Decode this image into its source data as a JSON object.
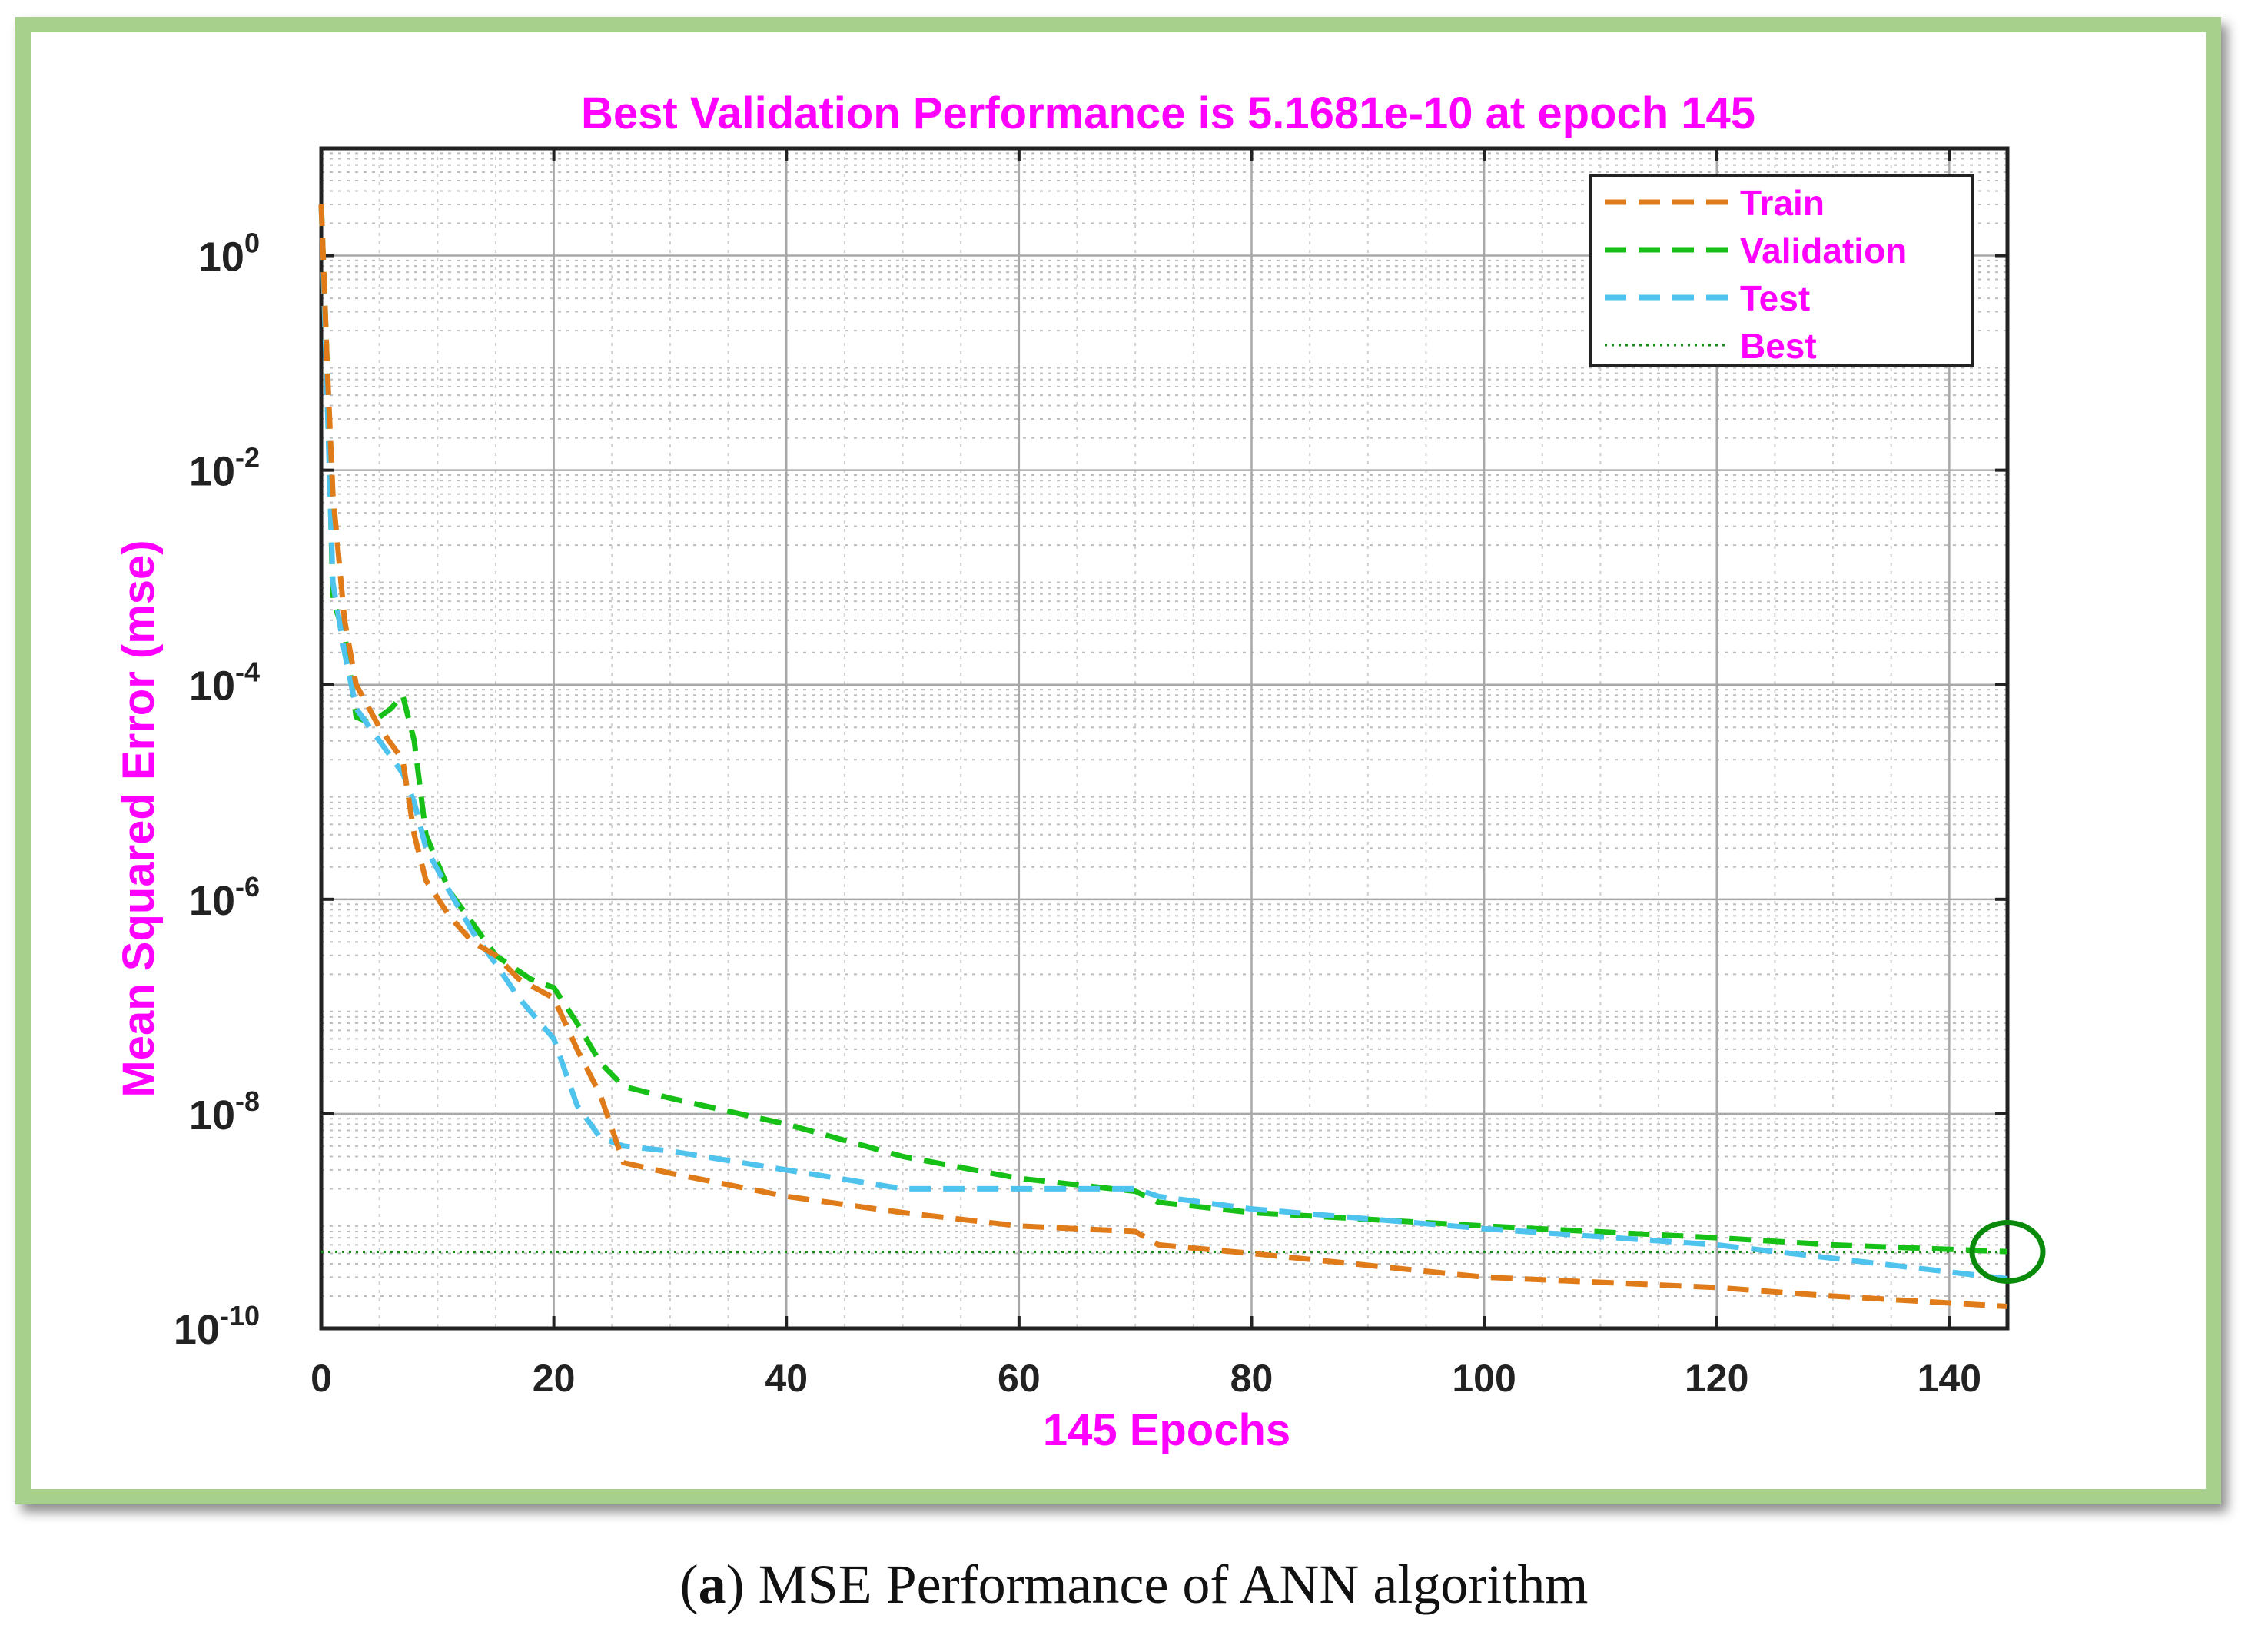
{
  "colors": {
    "frame": "#a8d08d",
    "title": "#ff00ff",
    "train": "#e07b1a",
    "validation": "#17c017",
    "test": "#4ec3ee",
    "best": "#1a8a1a",
    "circle": "#0a8a0a"
  },
  "caption": {
    "letter": "a",
    "text": "MSE Performance of ANN algorithm"
  },
  "chart_data": {
    "type": "line",
    "title": "Best Validation Performance is 5.1681e-10 at epoch 145",
    "xlabel": "145 Epochs",
    "ylabel": "Mean Squared Error  (mse)",
    "yscale": "log",
    "xlim": [
      0,
      145
    ],
    "ylim": [
      1e-10,
      10
    ],
    "xticks": [
      0,
      20,
      40,
      60,
      80,
      100,
      120,
      140
    ],
    "yticks": [
      {
        "value": 1,
        "base": "10",
        "exp": "0"
      },
      {
        "value": 0.01,
        "base": "10",
        "exp": "-2"
      },
      {
        "value": 0.0001,
        "base": "10",
        "exp": "-4"
      },
      {
        "value": 1e-06,
        "base": "10",
        "exp": "-6"
      },
      {
        "value": 1e-08,
        "base": "10",
        "exp": "-8"
      },
      {
        "value": 1e-10,
        "base": "10",
        "exp": "-10"
      }
    ],
    "grid": true,
    "legend_position": "top-right",
    "series": [
      {
        "name": "Train",
        "key": "train",
        "style": "dashed",
        "x": [
          0,
          0.5,
          1,
          2,
          3,
          5,
          7,
          8,
          9,
          11,
          13,
          15,
          17,
          20,
          22,
          24,
          26,
          30,
          40,
          50,
          60,
          70,
          72,
          80,
          100,
          120,
          130,
          145
        ],
        "y": [
          3,
          0.1,
          0.006,
          0.0004,
          0.0001,
          4e-05,
          2e-05,
          4e-06,
          1.5e-06,
          7e-07,
          4e-07,
          3e-07,
          1.8e-07,
          1.2e-07,
          4e-08,
          1.5e-08,
          3.5e-09,
          2.8e-09,
          1.7e-09,
          1.2e-09,
          9e-10,
          8e-10,
          6e-10,
          5e-10,
          3e-10,
          2.4e-10,
          2e-10,
          1.6e-10
        ]
      },
      {
        "name": "Validation",
        "key": "validation",
        "style": "dashed",
        "x": [
          0,
          0.5,
          1,
          2,
          3,
          4,
          5,
          6,
          7,
          8,
          9,
          11,
          13,
          15,
          18,
          20,
          22,
          24,
          26,
          30,
          40,
          50,
          60,
          70,
          72,
          80,
          100,
          120,
          130,
          145
        ],
        "y": [
          3,
          0.1,
          0.0006,
          0.0003,
          5e-05,
          4.5e-05,
          5e-05,
          6e-05,
          8e-05,
          3e-05,
          4e-06,
          1.2e-06,
          6e-07,
          3e-07,
          1.8e-07,
          1.5e-07,
          7e-08,
          3e-08,
          1.8e-08,
          1.4e-08,
          8e-09,
          4e-09,
          2.5e-09,
          1.9e-09,
          1.5e-09,
          1.2e-09,
          9e-10,
          7e-10,
          6e-10,
          5.2e-10
        ]
      },
      {
        "name": "Test",
        "key": "test",
        "style": "dashed",
        "x": [
          0,
          0.5,
          1,
          2,
          3,
          5,
          7,
          8,
          9,
          11,
          13,
          15,
          17,
          20,
          22,
          24,
          26,
          30,
          40,
          50,
          60,
          70,
          72,
          80,
          100,
          120,
          130,
          145
        ],
        "y": [
          3,
          0.05,
          0.0009,
          0.0002,
          6e-05,
          3e-05,
          1.5e-05,
          8e-06,
          3e-06,
          1.2e-06,
          5e-07,
          2.5e-07,
          1.2e-07,
          5e-08,
          1.2e-08,
          6e-09,
          5e-09,
          4.5e-09,
          3e-09,
          2e-09,
          2e-09,
          2e-09,
          1.7e-09,
          1.3e-09,
          8.5e-10,
          6e-10,
          4.5e-10,
          2.9e-10
        ]
      },
      {
        "name": "Best",
        "key": "best",
        "style": "dotted",
        "x": [
          0,
          145
        ],
        "y": [
          5.1681e-10,
          5.1681e-10
        ]
      }
    ],
    "best_point": {
      "epoch": 145,
      "value": 5.1681e-10
    }
  }
}
